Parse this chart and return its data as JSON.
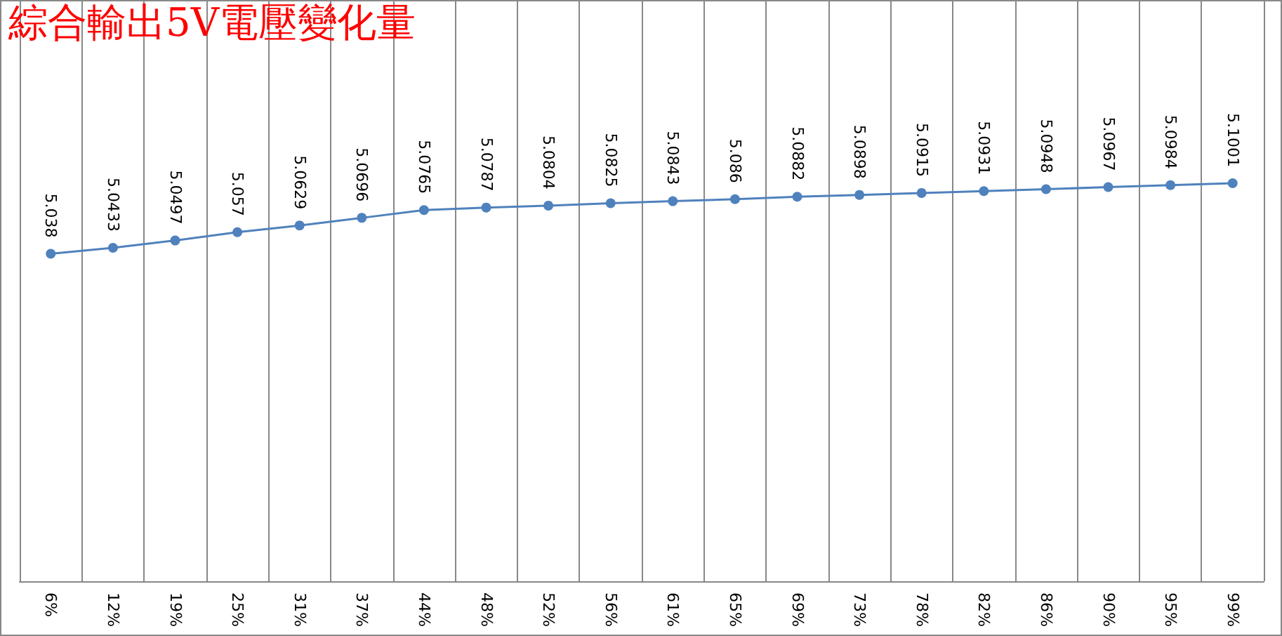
{
  "chart_data": {
    "type": "line",
    "title": "綜合輸出5V電壓變化量",
    "categories": [
      "6%",
      "12%",
      "19%",
      "25%",
      "31%",
      "37%",
      "44%",
      "48%",
      "52%",
      "56%",
      "61%",
      "65%",
      "69%",
      "73%",
      "78%",
      "82%",
      "86%",
      "90%",
      "95%",
      "99%"
    ],
    "series": [
      {
        "color": "#4f81bd",
        "values": [
          5.038,
          5.0433,
          5.0497,
          5.057,
          5.0629,
          5.0696,
          5.0765,
          5.0787,
          5.0804,
          5.0825,
          5.0843,
          5.086,
          5.0882,
          5.0898,
          5.0915,
          5.0931,
          5.0948,
          5.0967,
          5.0984,
          5.1001
        ]
      }
    ],
    "ylim": [
      4.75,
      5.26
    ],
    "data_labels": true,
    "grid": "x",
    "marker": "circle",
    "line_style": "solid"
  }
}
